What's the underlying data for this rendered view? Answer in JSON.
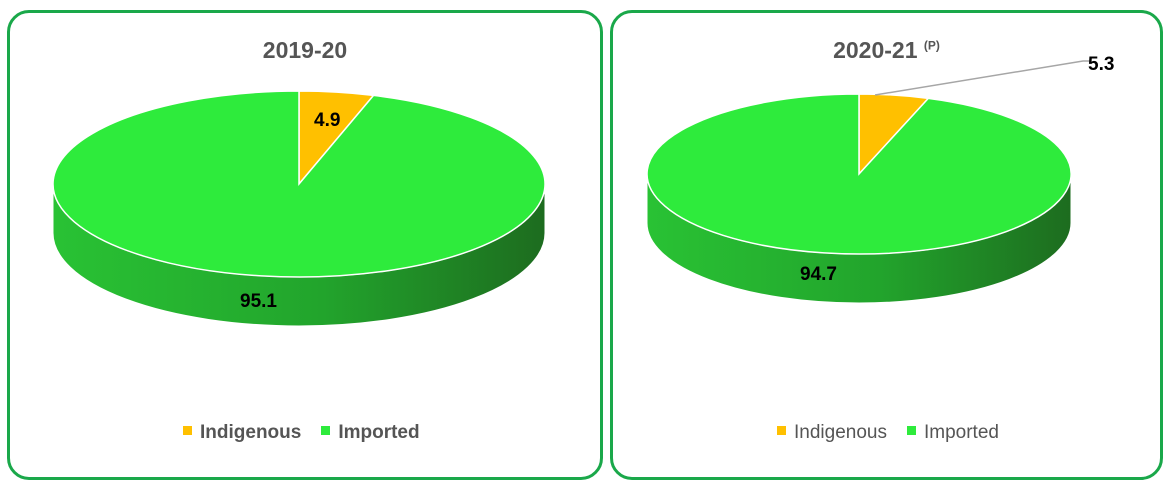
{
  "chart_data": [
    {
      "type": "pie",
      "title": "2019-20",
      "title_superscript": "",
      "categories": [
        "Indigenous",
        "Imported"
      ],
      "values": [
        4.9,
        95.1
      ],
      "colors": [
        "#ffc000",
        "#2eeb3c"
      ],
      "data_labels": [
        "4.9",
        "95.1"
      ],
      "legend": [
        "Indigenous",
        "Imported"
      ],
      "legend_position": "bottom",
      "style": "3d"
    },
    {
      "type": "pie",
      "title": "2020-21",
      "title_superscript": "(P)",
      "categories": [
        "Indigenous",
        "Imported"
      ],
      "values": [
        5.3,
        94.7
      ],
      "colors": [
        "#ffc000",
        "#2eeb3c"
      ],
      "data_labels": [
        "5.3",
        "94.7"
      ],
      "legend": [
        "Indigenous",
        "Imported"
      ],
      "legend_position": "bottom",
      "style": "3d"
    }
  ]
}
